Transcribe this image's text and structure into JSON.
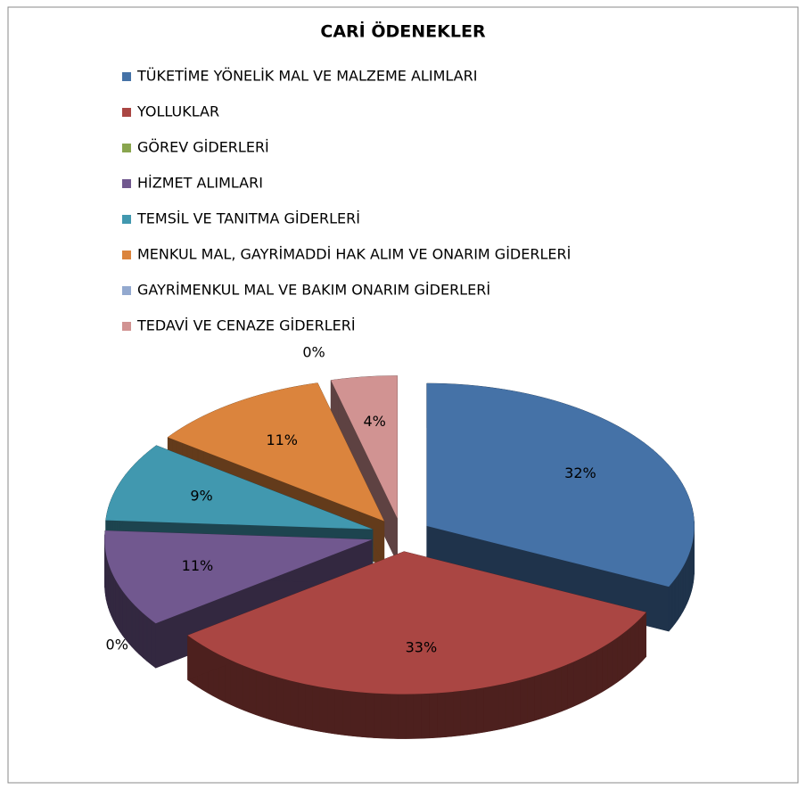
{
  "chart_data": {
    "type": "pie",
    "title": "CARİ ÖDENEKLER",
    "categories": [
      "TÜKETİME YÖNELİK MAL VE MALZEME ALIMLARI",
      "YOLLUKLAR",
      "GÖREV GİDERLERİ",
      "HİZMET ALIMLARI",
      "TEMSİL VE TANITMA GİDERLERİ",
      "MENKUL MAL, GAYRİMADDİ HAK ALIM VE ONARIM GİDERLERİ",
      "GAYRİMENKUL MAL VE BAKIM ONARIM GİDERLERİ",
      "TEDAVİ VE CENAZE GİDERLERİ"
    ],
    "values": [
      32,
      33,
      0,
      11,
      9,
      11,
      0,
      4
    ],
    "value_labels": [
      "32%",
      "33%",
      "0%",
      "11%",
      "9%",
      "11%",
      "0%",
      "4%"
    ],
    "colors": [
      "#4572A7",
      "#AA4643",
      "#89A54E",
      "#71588F",
      "#4198AF",
      "#DB843D",
      "#93A9CF",
      "#D19392"
    ]
  }
}
